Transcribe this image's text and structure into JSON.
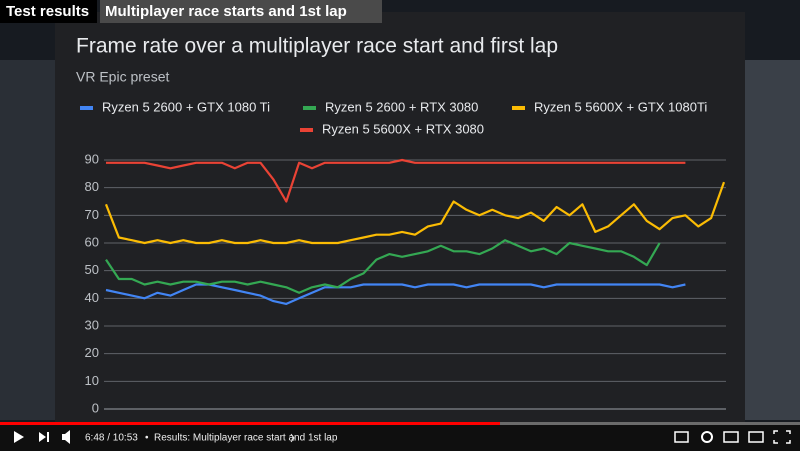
{
  "header": {
    "section": "Test results",
    "topic": "Multiplayer race starts and 1st lap"
  },
  "player": {
    "time": "6:48 / 10:53",
    "separator": "•",
    "chapter": "Results: Multiplayer race start and 1st lap"
  },
  "chart_data": {
    "type": "line",
    "title": "Frame rate over a multiplayer race start and first lap",
    "subtitle": "VR Epic preset",
    "ylim": [
      0,
      90
    ],
    "yticks": [
      0,
      10,
      20,
      30,
      40,
      50,
      60,
      70,
      80,
      90
    ],
    "grid": true,
    "series": [
      {
        "name": "Ryzen 5 2600 + GTX 1080 Ti",
        "color": "#4285f4",
        "values": [
          43,
          42,
          41,
          40,
          42,
          41,
          43,
          45,
          45,
          44,
          43,
          42,
          41,
          39,
          38,
          40,
          42,
          44,
          44,
          44,
          45,
          45,
          45,
          45,
          44,
          45,
          45,
          45,
          44,
          45,
          45,
          45,
          45,
          45,
          44,
          45,
          45,
          45,
          45,
          45,
          45,
          45,
          45,
          45,
          44,
          45,
          null,
          null,
          null
        ]
      },
      {
        "name": "Ryzen 5 2600 + RTX 3080",
        "color": "#34a853",
        "values": [
          54,
          47,
          47,
          45,
          46,
          45,
          46,
          46,
          45,
          46,
          46,
          45,
          46,
          45,
          44,
          42,
          44,
          45,
          44,
          47,
          49,
          54,
          56,
          55,
          56,
          57,
          59,
          57,
          57,
          56,
          58,
          61,
          59,
          57,
          58,
          56,
          60,
          59,
          58,
          57,
          57,
          55,
          52,
          60,
          null,
          null,
          null,
          null,
          null
        ]
      },
      {
        "name": "Ryzen 5 5600X + GTX 1080Ti",
        "color": "#fbbc04",
        "values": [
          74,
          62,
          61,
          60,
          61,
          60,
          61,
          60,
          60,
          61,
          60,
          60,
          61,
          60,
          60,
          61,
          60,
          60,
          60,
          61,
          62,
          63,
          63,
          64,
          63,
          66,
          67,
          75,
          72,
          70,
          72,
          70,
          69,
          71,
          68,
          73,
          70,
          74,
          64,
          66,
          70,
          74,
          68,
          65,
          69,
          70,
          66,
          69,
          82
        ]
      },
      {
        "name": "Ryzen 5 5600X + RTX 3080",
        "color": "#ea4335",
        "values": [
          89,
          89,
          89,
          89,
          88,
          87,
          88,
          89,
          89,
          89,
          87,
          89,
          89,
          83,
          75,
          89,
          87,
          89,
          89,
          89,
          89,
          89,
          89,
          90,
          89,
          89,
          89,
          89,
          89,
          89,
          89,
          89,
          89,
          89,
          89,
          89,
          89,
          89,
          89,
          89,
          89,
          89,
          89,
          89,
          89,
          89,
          null,
          null,
          null
        ]
      }
    ]
  }
}
